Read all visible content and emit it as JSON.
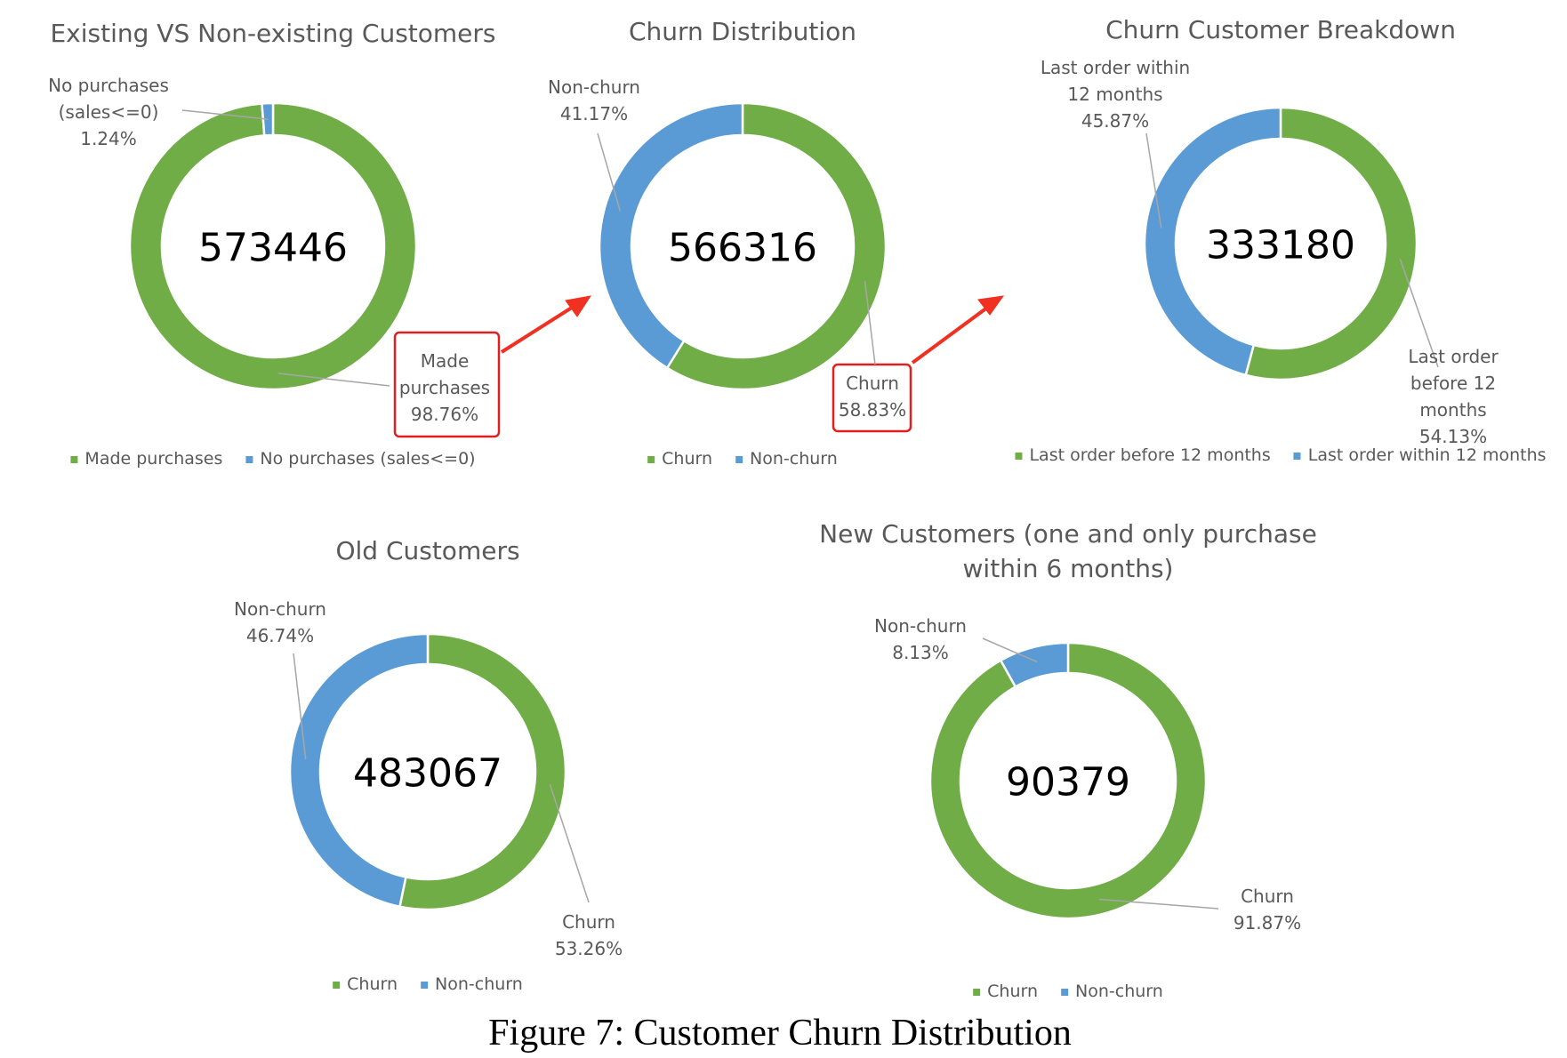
{
  "chart_data": [
    {
      "type": "donut",
      "title": "Existing VS Non-existing Customers",
      "total": 573446,
      "categories": [
        "Made purchases",
        "No purchases (sales<=0)"
      ],
      "values": [
        98.76,
        1.24
      ],
      "value_labels": [
        "98.76%",
        "1.24%"
      ],
      "colors": [
        "#70ad47",
        "#5b9bd5"
      ],
      "legend": "bottom"
    },
    {
      "type": "donut",
      "title": "Churn Distribution",
      "total": 566316,
      "categories": [
        "Churn",
        "Non-churn"
      ],
      "values": [
        58.83,
        41.17
      ],
      "value_labels": [
        "58.83%",
        "41.17%"
      ],
      "colors": [
        "#70ad47",
        "#5b9bd5"
      ],
      "legend": "bottom"
    },
    {
      "type": "donut",
      "title": "Churn Customer Breakdown",
      "total": 333180,
      "categories": [
        "Last order before 12 months",
        "Last order within 12 months"
      ],
      "values": [
        54.13,
        45.87
      ],
      "value_labels": [
        "54.13%",
        "45.87%"
      ],
      "colors": [
        "#70ad47",
        "#5b9bd5"
      ],
      "legend": "bottom"
    },
    {
      "type": "donut",
      "title": "Old Customers",
      "total": 483067,
      "categories": [
        "Churn",
        "Non-churn"
      ],
      "values": [
        53.26,
        46.74
      ],
      "value_labels": [
        "53.26%",
        "46.74%"
      ],
      "colors": [
        "#70ad47",
        "#5b9bd5"
      ],
      "legend": "bottom"
    },
    {
      "type": "donut",
      "title": "New Customers (one and only purchase within 6 months)",
      "total": 90379,
      "categories": [
        "Churn",
        "Non-churn"
      ],
      "values": [
        91.87,
        8.13
      ],
      "value_labels": [
        "91.87%",
        "8.13%"
      ],
      "colors": [
        "#70ad47",
        "#5b9bd5"
      ],
      "legend": "bottom"
    }
  ],
  "figure_caption": "Figure 7:  Customer Churn Distribution"
}
